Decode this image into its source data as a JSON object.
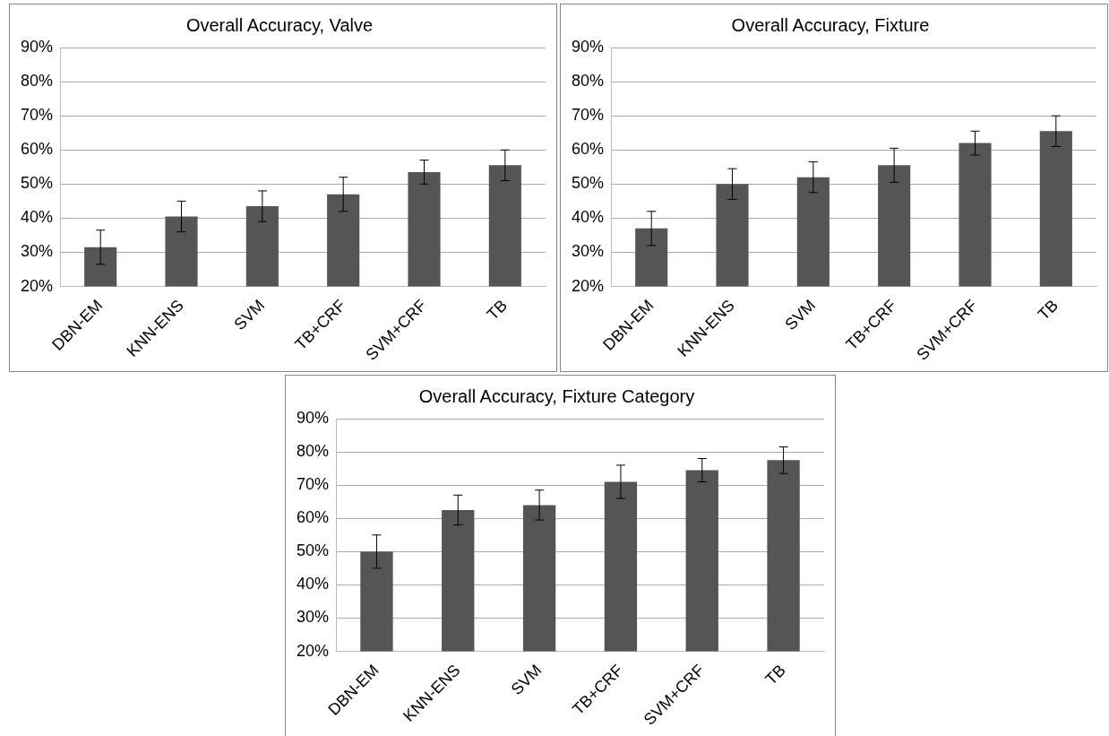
{
  "chart_data": [
    {
      "type": "bar",
      "title": "Overall Accuracy, Valve",
      "categories": [
        "DBN-EM",
        "KNN-ENS",
        "SVM",
        "TB+CRF",
        "SVM+CRF",
        "TB"
      ],
      "color": "#555555",
      "values": [
        31.5,
        40.5,
        43.5,
        47,
        53.5,
        55.5
      ],
      "errors": [
        5,
        4.5,
        4.5,
        5,
        3.5,
        4.5
      ],
      "ylim": [
        20,
        90
      ],
      "yticks": [
        {
          "value": 20,
          "label": "20%"
        },
        {
          "value": 30,
          "label": "30%"
        },
        {
          "value": 40,
          "label": "40%"
        },
        {
          "value": 50,
          "label": "50%"
        },
        {
          "value": 60,
          "label": "60%"
        },
        {
          "value": 70,
          "label": "70%"
        },
        {
          "value": 80,
          "label": "80%"
        },
        {
          "value": 90,
          "label": "90%"
        }
      ],
      "grid": "y",
      "legend": false
    },
    {
      "type": "bar",
      "title": "Overall Accuracy, Fixture",
      "categories": [
        "DBN-EM",
        "KNN-ENS",
        "SVM",
        "TB+CRF",
        "SVM+CRF",
        "TB"
      ],
      "color": "#555555",
      "values": [
        37,
        50,
        52,
        55.5,
        62,
        65.5
      ],
      "errors": [
        5,
        4.5,
        4.5,
        5,
        3.5,
        4.5
      ],
      "ylim": [
        20,
        90
      ],
      "yticks": [
        {
          "value": 20,
          "label": "20%"
        },
        {
          "value": 30,
          "label": "30%"
        },
        {
          "value": 40,
          "label": "40%"
        },
        {
          "value": 50,
          "label": "50%"
        },
        {
          "value": 60,
          "label": "60%"
        },
        {
          "value": 70,
          "label": "70%"
        },
        {
          "value": 80,
          "label": "80%"
        },
        {
          "value": 90,
          "label": "90%"
        }
      ],
      "grid": "y",
      "legend": false
    },
    {
      "type": "bar",
      "title": "Overall Accuracy, Fixture Category",
      "categories": [
        "DBN-EM",
        "KNN-ENS",
        "SVM",
        "TB+CRF",
        "SVM+CRF",
        "TB"
      ],
      "color": "#555555",
      "values": [
        50,
        62.5,
        64,
        71,
        74.5,
        77.5
      ],
      "errors": [
        5,
        4.5,
        4.5,
        5,
        3.5,
        4
      ],
      "ylim": [
        20,
        90
      ],
      "yticks": [
        {
          "value": 20,
          "label": "20%"
        },
        {
          "value": 30,
          "label": "30%"
        },
        {
          "value": 40,
          "label": "40%"
        },
        {
          "value": 50,
          "label": "50%"
        },
        {
          "value": 60,
          "label": "60%"
        },
        {
          "value": 70,
          "label": "70%"
        },
        {
          "value": 80,
          "label": "80%"
        },
        {
          "value": 90,
          "label": "90%"
        }
      ],
      "grid": "y",
      "legend": false
    }
  ]
}
